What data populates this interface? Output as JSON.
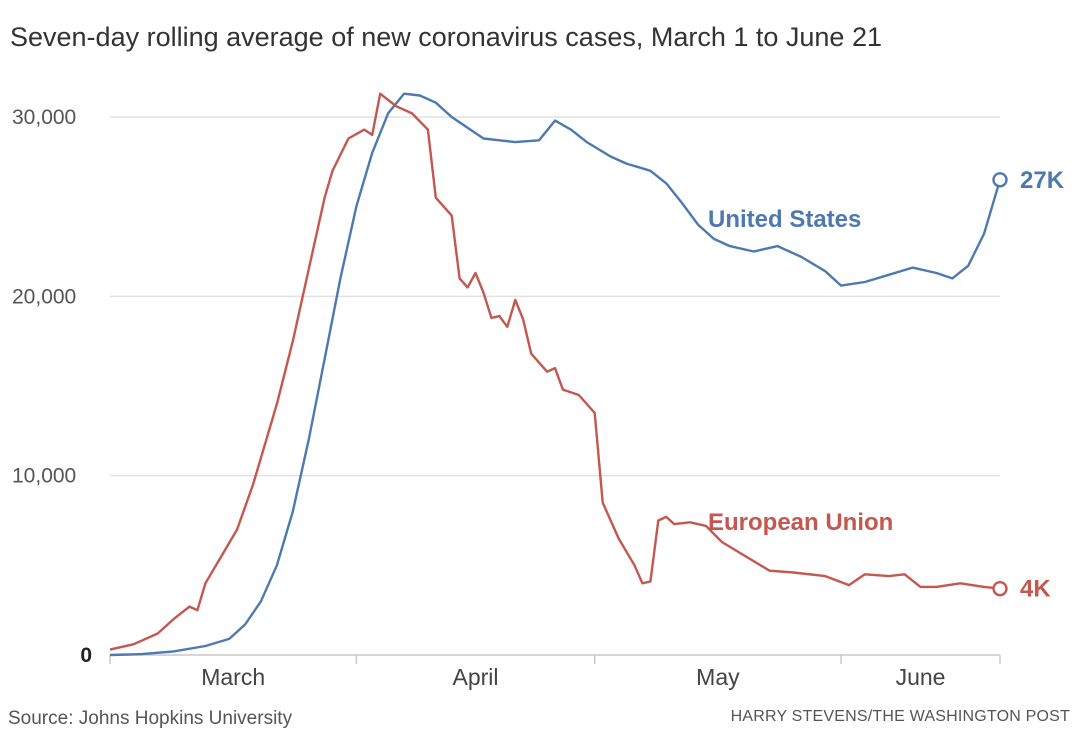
{
  "title": "Seven-day rolling average of new coronavirus cases, March 1 to June 21",
  "source": "Source: Johns Hopkins University",
  "credit": "HARRY STEVENS/THE WASHINGTON POST",
  "colors": {
    "us": "#4e79b0",
    "eu": "#c4574f",
    "grid": "#e2e2e2",
    "axis": "#c8c8c8"
  },
  "chart_data": {
    "type": "line",
    "title": "Seven-day rolling average of new coronavirus cases, March 1 to June 21",
    "xlabel": "",
    "ylabel": "",
    "x_range": [
      "2020-03-01",
      "2020-06-21"
    ],
    "ylim": [
      0,
      30000
    ],
    "y_ticks": [
      {
        "value": 0,
        "label": "0"
      },
      {
        "value": 10000,
        "label": "10,000"
      },
      {
        "value": 20000,
        "label": "20,000"
      },
      {
        "value": 30000,
        "label": "30,000"
      }
    ],
    "x_month_labels": [
      "March",
      "April",
      "May",
      "June"
    ],
    "grid": true,
    "series": [
      {
        "name": "United States",
        "color": "#4e79b0",
        "end_label": "27K",
        "points": [
          [
            "2020-03-01",
            0
          ],
          [
            "2020-03-05",
            50
          ],
          [
            "2020-03-09",
            200
          ],
          [
            "2020-03-13",
            500
          ],
          [
            "2020-03-16",
            900
          ],
          [
            "2020-03-18",
            1700
          ],
          [
            "2020-03-20",
            3000
          ],
          [
            "2020-03-22",
            5000
          ],
          [
            "2020-03-24",
            8000
          ],
          [
            "2020-03-26",
            12000
          ],
          [
            "2020-03-28",
            16500
          ],
          [
            "2020-03-30",
            21000
          ],
          [
            "2020-04-01",
            25000
          ],
          [
            "2020-04-03",
            28000
          ],
          [
            "2020-04-05",
            30200
          ],
          [
            "2020-04-07",
            31300
          ],
          [
            "2020-04-09",
            31200
          ],
          [
            "2020-04-11",
            30800
          ],
          [
            "2020-04-13",
            30000
          ],
          [
            "2020-04-15",
            29400
          ],
          [
            "2020-04-17",
            28800
          ],
          [
            "2020-04-19",
            28700
          ],
          [
            "2020-04-21",
            28600
          ],
          [
            "2020-04-24",
            28700
          ],
          [
            "2020-04-26",
            29800
          ],
          [
            "2020-04-28",
            29300
          ],
          [
            "2020-04-30",
            28600
          ],
          [
            "2020-05-03",
            27800
          ],
          [
            "2020-05-05",
            27400
          ],
          [
            "2020-05-08",
            27000
          ],
          [
            "2020-05-10",
            26300
          ],
          [
            "2020-05-12",
            25200
          ],
          [
            "2020-05-14",
            24000
          ],
          [
            "2020-05-16",
            23200
          ],
          [
            "2020-05-18",
            22800
          ],
          [
            "2020-05-21",
            22500
          ],
          [
            "2020-05-24",
            22800
          ],
          [
            "2020-05-27",
            22200
          ],
          [
            "2020-05-30",
            21400
          ],
          [
            "2020-06-01",
            20600
          ],
          [
            "2020-06-04",
            20800
          ],
          [
            "2020-06-07",
            21200
          ],
          [
            "2020-06-10",
            21600
          ],
          [
            "2020-06-13",
            21300
          ],
          [
            "2020-06-15",
            21000
          ],
          [
            "2020-06-17",
            21700
          ],
          [
            "2020-06-19",
            23500
          ],
          [
            "2020-06-21",
            26500
          ]
        ]
      },
      {
        "name": "European Union",
        "color": "#c4574f",
        "end_label": "4K",
        "points": [
          [
            "2020-03-01",
            300
          ],
          [
            "2020-03-04",
            600
          ],
          [
            "2020-03-07",
            1200
          ],
          [
            "2020-03-09",
            2000
          ],
          [
            "2020-03-11",
            2700
          ],
          [
            "2020-03-12",
            2500
          ],
          [
            "2020-03-13",
            4000
          ],
          [
            "2020-03-15",
            5500
          ],
          [
            "2020-03-17",
            7000
          ],
          [
            "2020-03-19",
            9500
          ],
          [
            "2020-03-20",
            11000
          ],
          [
            "2020-03-22",
            14000
          ],
          [
            "2020-03-24",
            17500
          ],
          [
            "2020-03-26",
            21500
          ],
          [
            "2020-03-28",
            25500
          ],
          [
            "2020-03-29",
            27000
          ],
          [
            "2020-03-31",
            28800
          ],
          [
            "2020-04-02",
            29300
          ],
          [
            "2020-04-03",
            29000
          ],
          [
            "2020-04-04",
            31300
          ],
          [
            "2020-04-06",
            30600
          ],
          [
            "2020-04-08",
            30200
          ],
          [
            "2020-04-10",
            29300
          ],
          [
            "2020-04-11",
            25500
          ],
          [
            "2020-04-13",
            24500
          ],
          [
            "2020-04-14",
            21000
          ],
          [
            "2020-04-15",
            20500
          ],
          [
            "2020-04-16",
            21300
          ],
          [
            "2020-04-17",
            20200
          ],
          [
            "2020-04-18",
            18800
          ],
          [
            "2020-04-19",
            18900
          ],
          [
            "2020-04-20",
            18300
          ],
          [
            "2020-04-21",
            19800
          ],
          [
            "2020-04-22",
            18700
          ],
          [
            "2020-04-23",
            16800
          ],
          [
            "2020-04-25",
            15800
          ],
          [
            "2020-04-26",
            16000
          ],
          [
            "2020-04-27",
            14800
          ],
          [
            "2020-04-29",
            14500
          ],
          [
            "2020-05-01",
            13500
          ],
          [
            "2020-05-02",
            8500
          ],
          [
            "2020-05-04",
            6500
          ],
          [
            "2020-05-06",
            5000
          ],
          [
            "2020-05-07",
            4000
          ],
          [
            "2020-05-08",
            4100
          ],
          [
            "2020-05-09",
            7500
          ],
          [
            "2020-05-10",
            7700
          ],
          [
            "2020-05-11",
            7300
          ],
          [
            "2020-05-13",
            7400
          ],
          [
            "2020-05-15",
            7200
          ],
          [
            "2020-05-17",
            6300
          ],
          [
            "2020-05-20",
            5500
          ],
          [
            "2020-05-23",
            4700
          ],
          [
            "2020-05-26",
            4600
          ],
          [
            "2020-05-30",
            4400
          ],
          [
            "2020-06-02",
            3900
          ],
          [
            "2020-06-04",
            4500
          ],
          [
            "2020-06-07",
            4400
          ],
          [
            "2020-06-09",
            4500
          ],
          [
            "2020-06-11",
            3800
          ],
          [
            "2020-06-13",
            3800
          ],
          [
            "2020-06-16",
            4000
          ],
          [
            "2020-06-19",
            3800
          ],
          [
            "2020-06-21",
            3700
          ]
        ]
      }
    ]
  }
}
